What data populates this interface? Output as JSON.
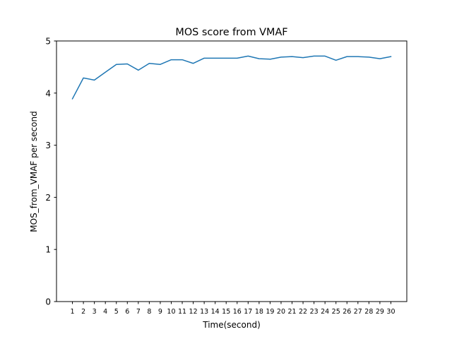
{
  "chart_data": {
    "type": "line",
    "title": "MOS score from VMAF",
    "xlabel": "Time(second)",
    "ylabel": "MOS_from_VMAF per second",
    "x": [
      1,
      2,
      3,
      4,
      5,
      6,
      7,
      8,
      9,
      10,
      11,
      12,
      13,
      14,
      15,
      16,
      17,
      18,
      19,
      20,
      21,
      22,
      23,
      24,
      25,
      26,
      27,
      28,
      29,
      30
    ],
    "xticks": [
      "1",
      "2",
      "3",
      "4",
      "5",
      "6",
      "7",
      "8",
      "9",
      "10",
      "11",
      "12",
      "13",
      "14",
      "15",
      "16",
      "17",
      "18",
      "19",
      "20",
      "21",
      "22",
      "23",
      "24",
      "25",
      "26",
      "27",
      "28",
      "29",
      "30"
    ],
    "yticks": [
      "0",
      "1",
      "2",
      "3",
      "4",
      "5"
    ],
    "ylim": [
      0,
      5
    ],
    "grid": false,
    "series": [
      {
        "color": "#1f77b4",
        "values": [
          3.89,
          4.29,
          4.25,
          4.4,
          4.55,
          4.56,
          4.44,
          4.57,
          4.55,
          4.64,
          4.64,
          4.57,
          4.67,
          4.67,
          4.67,
          4.67,
          4.71,
          4.66,
          4.65,
          4.69,
          4.7,
          4.68,
          4.71,
          4.71,
          4.63,
          4.7,
          4.7,
          4.69,
          4.66,
          4.7
        ]
      }
    ]
  }
}
